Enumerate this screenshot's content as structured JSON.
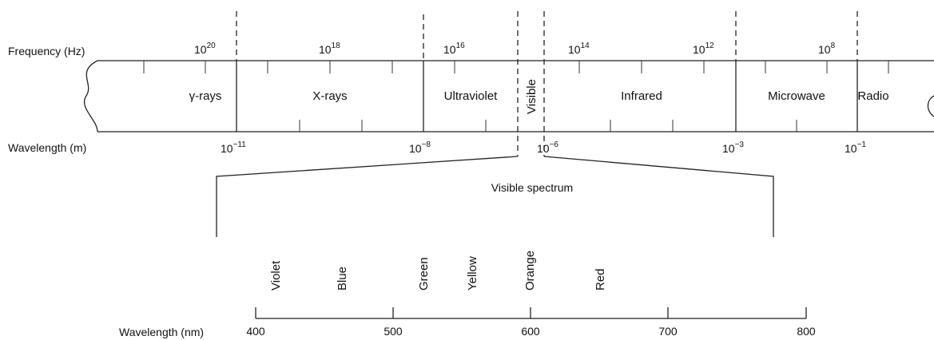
{
  "top_axis": {
    "frequency_label": "Frequency (Hz)",
    "wavelength_label": "Wavelength (m)",
    "frequency_ticks": [
      {
        "base": "10",
        "exp": "20"
      },
      {
        "base": "10",
        "exp": "18"
      },
      {
        "base": "10",
        "exp": "16"
      },
      {
        "base": "10",
        "exp": "14"
      },
      {
        "base": "10",
        "exp": "12"
      },
      {
        "base": "10",
        "exp": "8"
      }
    ],
    "wavelength_ticks": [
      {
        "base": "10",
        "exp": "−11"
      },
      {
        "base": "10",
        "exp": "−8"
      },
      {
        "base": "10",
        "exp": "−6"
      },
      {
        "base": "10",
        "exp": "−3"
      },
      {
        "base": "10",
        "exp": "−1"
      }
    ],
    "bands": [
      "γ-rays",
      "X-rays",
      "Ultraviolet",
      "Visible",
      "Infrared",
      "Microwave",
      "Radio"
    ]
  },
  "visible": {
    "title": "Visible spectrum",
    "colors": [
      "Violet",
      "Blue",
      "Green",
      "Yellow",
      "Orange",
      "Red"
    ],
    "axis_label": "Wavelength (nm)",
    "axis_ticks": [
      "400",
      "500",
      "600",
      "700",
      "800"
    ]
  }
}
